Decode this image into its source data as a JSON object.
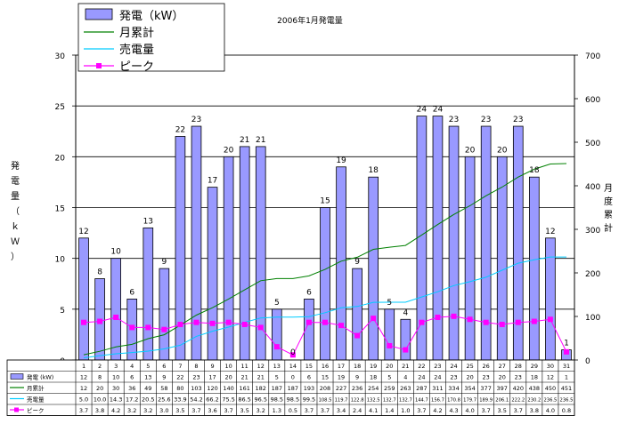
{
  "chart_data": {
    "type": "bar",
    "title": "2006年1月発電量",
    "left_axis_label": "発電量（ｋＷ）",
    "right_axis_label": "月度累計",
    "left_ylim": [
      0,
      30
    ],
    "left_ticks": [
      "0",
      "5",
      "10",
      "15",
      "20",
      "25",
      "30"
    ],
    "right_ylim": [
      0,
      700
    ],
    "right_ticks": [
      "0",
      "100",
      "200",
      "300",
      "400",
      "500",
      "600",
      "700"
    ],
    "grid": true,
    "legend_position": "top-left",
    "categories": [
      "1",
      "2",
      "3",
      "4",
      "5",
      "6",
      "7",
      "8",
      "9",
      "10",
      "11",
      "12",
      "13",
      "14",
      "15",
      "16",
      "17",
      "18",
      "19",
      "20",
      "21",
      "22",
      "23",
      "24",
      "25",
      "26",
      "27",
      "28",
      "29",
      "30",
      "31"
    ],
    "series": [
      {
        "name": "発電（kW）",
        "type": "bar",
        "axis": "left",
        "color": "#9999ff",
        "table_label": "発電 (kW)",
        "values": [
          12,
          8,
          10,
          6,
          13,
          9,
          22,
          23,
          17,
          20,
          21,
          21,
          5,
          0,
          6,
          15,
          19,
          9,
          18,
          5,
          4,
          24,
          24,
          23,
          20,
          23,
          20,
          23,
          18,
          12,
          1
        ]
      },
      {
        "name": "月累計",
        "type": "line",
        "axis": "right",
        "color": "#008000",
        "table_label": "月累計",
        "values": [
          12,
          20,
          30,
          36,
          49,
          58,
          80,
          103,
          120,
          140,
          161,
          182,
          187,
          187,
          193,
          208,
          227,
          236,
          254,
          259,
          263,
          287,
          311,
          334,
          354,
          377,
          397,
          420,
          438,
          450,
          451
        ]
      },
      {
        "name": "売電量",
        "type": "line",
        "axis": "right",
        "color": "#00ccff",
        "table_label": "売電量",
        "values": [
          5.0,
          10.0,
          14.3,
          17.2,
          20.5,
          25.6,
          33.9,
          54.2,
          66.2,
          75.5,
          86.5,
          96.5,
          98.5,
          98.5,
          99.5,
          108.5,
          119.7,
          122.8,
          132.5,
          132.7,
          132.7,
          144.7,
          156.7,
          170.8,
          179.7,
          189.9,
          206.1,
          222.2,
          230.2,
          236.5,
          236.5
        ]
      },
      {
        "name": "ピーク",
        "type": "line",
        "axis": "left",
        "color": "#ff00ff",
        "table_label": "ピーク",
        "values": [
          3.7,
          3.8,
          4.2,
          3.2,
          3.2,
          3.0,
          3.5,
          3.7,
          3.6,
          3.7,
          3.5,
          3.2,
          1.3,
          0.5,
          3.7,
          3.7,
          3.4,
          2.4,
          4.1,
          1.4,
          1.0,
          3.7,
          4.2,
          4.3,
          4.0,
          3.7,
          3.5,
          3.7,
          3.8,
          4.0,
          0.8
        ]
      }
    ],
    "table_rows": [
      [
        "12",
        "8",
        "10",
        "6",
        "13",
        "9",
        "22",
        "23",
        "17",
        "20",
        "21",
        "21",
        "5",
        "0",
        "6",
        "15",
        "19",
        "9",
        "18",
        "5",
        "4",
        "24",
        "24",
        "23",
        "20",
        "23",
        "20",
        "23",
        "18",
        "12",
        "1"
      ],
      [
        "12",
        "20",
        "30",
        "36",
        "49",
        "58",
        "80",
        "103",
        "120",
        "140",
        "161",
        "182",
        "187",
        "187",
        "193",
        "208",
        "227",
        "236",
        "254",
        "259",
        "263",
        "287",
        "311",
        "334",
        "354",
        "377",
        "397",
        "420",
        "438",
        "450",
        "451"
      ],
      [
        "5.0",
        "10.0",
        "14.3",
        "17.2",
        "20.5",
        "25.6",
        "33.9",
        "54.2",
        "66.2",
        "75.5",
        "86.5",
        "96.5",
        "98.5",
        "98.5",
        "99.5",
        "108.5",
        "119.7",
        "122.8",
        "132.5",
        "132.7",
        "132.7",
        "144.7",
        "156.7",
        "170.8",
        "179.7",
        "189.9",
        "206.1",
        "222.2",
        "230.2",
        "236.5",
        "236.5"
      ],
      [
        "3.7",
        "3.8",
        "4.2",
        "3.2",
        "3.2",
        "3.0",
        "3.5",
        "3.7",
        "3.6",
        "3.7",
        "3.5",
        "3.2",
        "1.3",
        "0.5",
        "3.7",
        "3.7",
        "3.4",
        "2.4",
        "4.1",
        "1.4",
        "1.0",
        "3.7",
        "4.2",
        "4.3",
        "4.0",
        "3.7",
        "3.5",
        "3.7",
        "3.8",
        "4.0",
        "0.8"
      ]
    ]
  }
}
